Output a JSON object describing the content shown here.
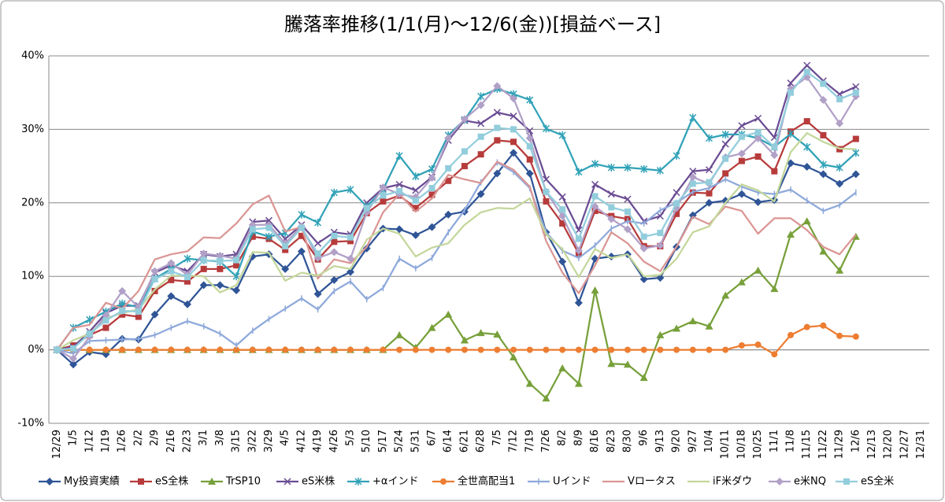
{
  "chart_data": {
    "type": "line",
    "title": "騰落率推移(1/1(月)～12/6(金))[損益ベース]",
    "categories": [
      "12/29",
      "1/5",
      "1/12",
      "1/19",
      "1/26",
      "2/2",
      "2/9",
      "2/16",
      "2/23",
      "3/1",
      "3/8",
      "3/15",
      "3/22",
      "3/29",
      "4/5",
      "4/12",
      "4/19",
      "4/26",
      "5/3",
      "5/10",
      "5/17",
      "5/24",
      "5/31",
      "6/7",
      "6/14",
      "6/21",
      "6/28",
      "7/5",
      "7/12",
      "7/19",
      "7/26",
      "8/2",
      "8/9",
      "8/16",
      "8/23",
      "8/30",
      "9/6",
      "9/13",
      "9/20",
      "9/27",
      "10/4",
      "10/11",
      "10/18",
      "10/25",
      "11/1",
      "11/8",
      "11/15",
      "11/22",
      "11/29",
      "12/6",
      "12/13",
      "12/20",
      "12/27",
      "12/31"
    ],
    "ylim": [
      -10,
      40
    ],
    "yticks": [
      {
        "value": -10,
        "label": "-10%"
      },
      {
        "value": 0,
        "label": "0%"
      },
      {
        "value": 10,
        "label": "10%"
      },
      {
        "value": 20,
        "label": "20%"
      },
      {
        "value": 30,
        "label": "30%"
      },
      {
        "value": 40,
        "label": "40%"
      }
    ],
    "grid": true,
    "legend": "bottom",
    "series": [
      {
        "name": "My投資実績",
        "color": "#2f5597",
        "marker": "diamond",
        "values": [
          0,
          -2,
          -0.3,
          -0.6,
          1.5,
          1.4,
          4.8,
          7.3,
          6.2,
          8.8,
          8.8,
          8.1,
          12.7,
          13,
          11,
          13.4,
          7.6,
          9.5,
          10.6,
          13.8,
          16.5,
          16.4,
          15.6,
          16.7,
          18.4,
          18.8,
          21.2,
          24,
          26.8,
          24,
          16,
          12,
          6.4,
          12.4,
          12.7,
          13,
          9.6,
          9.8,
          14,
          18.3,
          20,
          20.3,
          21.2,
          20.1,
          20.4,
          25.4,
          24.9,
          23.9,
          22.6,
          23.9,
          null,
          null,
          null,
          null
        ]
      },
      {
        "name": "eS全株",
        "color": "#b73b3b",
        "marker": "square",
        "values": [
          0,
          0.6,
          2,
          3,
          4.8,
          4.5,
          8,
          9.5,
          9.3,
          11,
          11,
          11.5,
          15.4,
          15.1,
          13.6,
          15.5,
          12.3,
          14.7,
          14.8,
          18.6,
          20.2,
          21,
          19.3,
          21.1,
          23,
          25,
          26.6,
          28.5,
          28.3,
          25.9,
          20.2,
          17.2,
          13.1,
          18.9,
          18.2,
          17.8,
          14.1,
          14.1,
          18.5,
          21.4,
          21.3,
          24,
          25.7,
          26.3,
          24.3,
          29.7,
          31.1,
          29.2,
          27.3,
          28.7,
          null,
          null,
          null,
          null
        ]
      },
      {
        "name": "TrSP10",
        "color": "#77a03a",
        "marker": "triangle",
        "values": [
          0,
          0,
          0,
          0,
          0,
          0,
          0,
          0,
          0,
          0,
          0,
          0,
          0,
          0,
          0,
          0,
          0,
          0,
          0,
          0,
          0,
          2,
          0.3,
          3,
          4.8,
          1.3,
          2.3,
          2.1,
          -1,
          -4.6,
          -6.6,
          -2.5,
          -4.6,
          8.1,
          -1.9,
          -2,
          -3.8,
          2,
          2.9,
          3.9,
          3.2,
          7.4,
          9.2,
          10.8,
          8.3,
          15.7,
          17.5,
          13.4,
          10.8,
          15.4,
          null,
          null,
          null,
          null
        ]
      },
      {
        "name": "eS米株",
        "color": "#6a4c93",
        "marker": "x",
        "values": [
          0,
          0.4,
          2.5,
          5,
          6,
          6,
          10.5,
          11.5,
          10.7,
          13,
          12.7,
          13,
          17.4,
          17.6,
          15.1,
          17,
          14.5,
          16,
          15.7,
          20,
          22,
          22.5,
          21.7,
          23.5,
          28.5,
          31.2,
          30.8,
          32.3,
          31.8,
          29.8,
          23.2,
          20.8,
          16.3,
          22.5,
          21.2,
          20.5,
          17.5,
          18.2,
          21.4,
          24.3,
          24.5,
          28,
          30.5,
          31.5,
          28.9,
          36.3,
          38.7,
          36.6,
          34.8,
          35.8,
          null,
          null,
          null,
          null
        ]
      },
      {
        "name": "+αインド",
        "color": "#31a2b8",
        "marker": "star",
        "values": [
          0,
          3,
          4.1,
          5.2,
          6.3,
          5.8,
          9.7,
          11,
          12.4,
          12.2,
          12,
          10,
          16.1,
          15.4,
          15.9,
          18.4,
          17.3,
          21.4,
          21.8,
          19.5,
          21.8,
          26.4,
          23.6,
          24.6,
          29.2,
          31.3,
          34.5,
          35.5,
          34.8,
          34,
          30.1,
          29.2,
          24.2,
          25.3,
          24.8,
          24.8,
          24.6,
          24.4,
          26.4,
          31.6,
          28.8,
          29.3,
          29.3,
          28.8,
          27.6,
          29.4,
          27.6,
          25.2,
          24.8,
          26.8,
          null,
          null,
          null,
          null
        ]
      },
      {
        "name": "全世高配当1",
        "color": "#ed7d31",
        "marker": "circle",
        "values": [
          0,
          0,
          0,
          0,
          0,
          0,
          0,
          0,
          0,
          0,
          0,
          0,
          0,
          0,
          0,
          0,
          0,
          0,
          0,
          0,
          0,
          0,
          0,
          0,
          0,
          0,
          0,
          0,
          0,
          0,
          0,
          0,
          0,
          0,
          0,
          0,
          0,
          0,
          0,
          0,
          0,
          0,
          0.6,
          0.7,
          -0.6,
          2,
          3.1,
          3.3,
          1.9,
          1.8,
          null,
          null,
          null,
          null
        ]
      },
      {
        "name": "Uインド",
        "color": "#8ea9db",
        "marker": "plus",
        "values": [
          0,
          -0.5,
          1.2,
          1.3,
          1.4,
          1.5,
          2,
          3,
          3.9,
          3.2,
          2.2,
          0.6,
          2.6,
          4.2,
          5.6,
          7,
          5.5,
          8,
          9.3,
          6.9,
          8.4,
          12.4,
          11.1,
          12.5,
          16,
          19,
          22.8,
          25.5,
          24.2,
          22,
          16,
          13.5,
          12.5,
          14.2,
          16.5,
          17.5,
          17.2,
          19,
          20,
          21.5,
          22,
          23.2,
          22.2,
          21.4,
          21.2,
          21.8,
          20.3,
          18.9,
          19.7,
          21.4,
          null,
          null,
          null,
          null
        ]
      },
      {
        "name": "Vロータス",
        "color": "#da9694",
        "marker": "none",
        "values": [
          0,
          3,
          3.4,
          6.4,
          5.6,
          8,
          12.3,
          13,
          13.4,
          15.3,
          15.2,
          17.2,
          19.8,
          21,
          16.1,
          16.7,
          9.7,
          12.3,
          11.8,
          14,
          18.7,
          21.2,
          18.8,
          20.6,
          23.8,
          23.2,
          22.7,
          25.6,
          24.5,
          22.2,
          14.8,
          10.5,
          7.7,
          11.5,
          16,
          14.5,
          12,
          10.7,
          14,
          18.1,
          17.1,
          19.5,
          18.9,
          15.8,
          17.9,
          17.9,
          16.3,
          14,
          13,
          15.7,
          null,
          null,
          null,
          null
        ]
      },
      {
        "name": "iF米ダウ",
        "color": "#c4d79b",
        "marker": "none",
        "values": [
          0,
          1.3,
          2.2,
          4.3,
          5,
          5.5,
          8.2,
          10.1,
          10.1,
          10,
          7.8,
          8.8,
          13.3,
          13.2,
          9.4,
          10.5,
          10.1,
          11.4,
          11,
          15,
          16.5,
          15.8,
          12.7,
          13.9,
          14.5,
          17,
          18.7,
          19.3,
          19.2,
          20.6,
          15.7,
          13.7,
          9.9,
          13.7,
          12.5,
          13,
          10,
          10.2,
          12.4,
          16,
          16.8,
          20,
          22.5,
          21.7,
          20.2,
          26.9,
          29.5,
          28.3,
          27.4,
          27.3,
          null,
          null,
          null,
          null
        ]
      },
      {
        "name": "e米NQ",
        "color": "#b1a0c7",
        "marker": "diamond",
        "values": [
          0,
          -1.2,
          1.8,
          4.7,
          8,
          5.8,
          10.7,
          11.8,
          10.2,
          13.1,
          12.8,
          12.4,
          17,
          17,
          14.5,
          16.8,
          12.5,
          13.3,
          12.4,
          18.7,
          22.1,
          21.2,
          20.8,
          23.4,
          28.8,
          31.4,
          33.3,
          35.9,
          34.2,
          28.8,
          21.5,
          18.2,
          13.5,
          19.5,
          17.8,
          16.4,
          13.8,
          14.2,
          19.3,
          23.5,
          22.6,
          26.2,
          26.7,
          28.8,
          26.5,
          35.5,
          37.1,
          34,
          30.8,
          34.5,
          null,
          null,
          null,
          null
        ]
      },
      {
        "name": "eS全米",
        "color": "#92cddc",
        "marker": "square",
        "values": [
          0,
          0.2,
          2.2,
          4,
          5.3,
          5.2,
          9.6,
          10.7,
          9.9,
          12.2,
          12.1,
          12.2,
          16.4,
          16.6,
          14.1,
          16.6,
          13.1,
          15.5,
          15.3,
          19.3,
          21,
          21.6,
          20.3,
          22,
          24.7,
          27,
          29,
          30.2,
          30,
          27.7,
          21.5,
          19.1,
          15.1,
          20.9,
          19.4,
          18.8,
          15.4,
          15.9,
          19.9,
          22.6,
          22.8,
          26,
          29,
          29.6,
          27.6,
          35,
          37.8,
          36.2,
          34.1,
          35,
          null,
          null,
          null,
          null
        ]
      }
    ]
  }
}
